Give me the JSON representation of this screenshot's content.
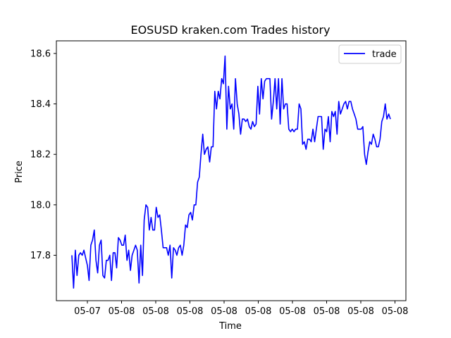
{
  "chart_data": {
    "type": "line",
    "title": "EOSUSD kraken.com Trades history",
    "xlabel": "Time",
    "ylabel": "Price",
    "x_tick_labels": [
      "05-07",
      "05-08",
      "05-08",
      "05-08",
      "05-08",
      "05-08",
      "05-08",
      "05-08",
      "05-08",
      "05-08"
    ],
    "y_ticks": [
      17.8,
      18.0,
      18.2,
      18.4,
      18.6
    ],
    "y_tick_labels": [
      "17.8",
      "18.0",
      "18.2",
      "18.4",
      "18.6"
    ],
    "ylim": [
      17.62,
      18.65
    ],
    "legend": {
      "position": "top-right",
      "entries": [
        "trade"
      ]
    },
    "grid": false,
    "series": [
      {
        "name": "trade",
        "color": "#0000ff",
        "values": [
          17.8,
          17.67,
          17.82,
          17.72,
          17.8,
          17.81,
          17.8,
          17.82,
          17.79,
          17.76,
          17.7,
          17.84,
          17.86,
          17.9,
          17.78,
          17.73,
          17.84,
          17.86,
          17.72,
          17.71,
          17.78,
          17.78,
          17.8,
          17.7,
          17.81,
          17.81,
          17.75,
          17.87,
          17.86,
          17.84,
          17.84,
          17.88,
          17.78,
          17.82,
          17.74,
          17.8,
          17.82,
          17.84,
          17.82,
          17.69,
          17.84,
          17.72,
          17.94,
          18.0,
          17.99,
          17.9,
          17.95,
          17.9,
          17.9,
          17.99,
          17.95,
          17.96,
          17.9,
          17.83,
          17.83,
          17.83,
          17.8,
          17.84,
          17.71,
          17.83,
          17.82,
          17.8,
          17.83,
          17.84,
          17.8,
          17.84,
          17.92,
          17.91,
          17.96,
          17.97,
          17.94,
          18.0,
          18.0,
          18.09,
          18.11,
          18.2,
          18.28,
          18.2,
          18.22,
          18.23,
          18.17,
          18.23,
          18.23,
          18.45,
          18.38,
          18.45,
          18.42,
          18.5,
          18.48,
          18.59,
          18.3,
          18.47,
          18.38,
          18.4,
          18.3,
          18.5,
          18.4,
          18.36,
          18.28,
          18.34,
          18.34,
          18.33,
          18.34,
          18.31,
          18.3,
          18.33,
          18.31,
          18.32,
          18.47,
          18.36,
          18.5,
          18.42,
          18.49,
          18.5,
          18.5,
          18.5,
          18.34,
          18.41,
          18.5,
          18.38,
          18.5,
          18.32,
          18.5,
          18.38,
          18.4,
          18.4,
          18.3,
          18.29,
          18.3,
          18.29,
          18.3,
          18.3,
          18.4,
          18.38,
          18.24,
          18.25,
          18.22,
          18.26,
          18.26,
          18.25,
          18.3,
          18.25,
          18.3,
          18.35,
          18.35,
          18.35,
          18.22,
          18.3,
          18.29,
          18.35,
          18.25,
          18.37,
          18.35,
          18.37,
          18.28,
          18.41,
          18.36,
          18.38,
          18.4,
          18.41,
          18.38,
          18.41,
          18.41,
          18.38,
          18.36,
          18.34,
          18.3,
          18.3,
          18.3,
          18.31,
          18.2,
          18.16,
          18.21,
          18.25,
          18.24,
          18.28,
          18.26,
          18.23,
          18.23,
          18.26,
          18.33,
          18.35,
          18.4,
          18.34,
          18.36,
          18.34
        ]
      }
    ]
  }
}
